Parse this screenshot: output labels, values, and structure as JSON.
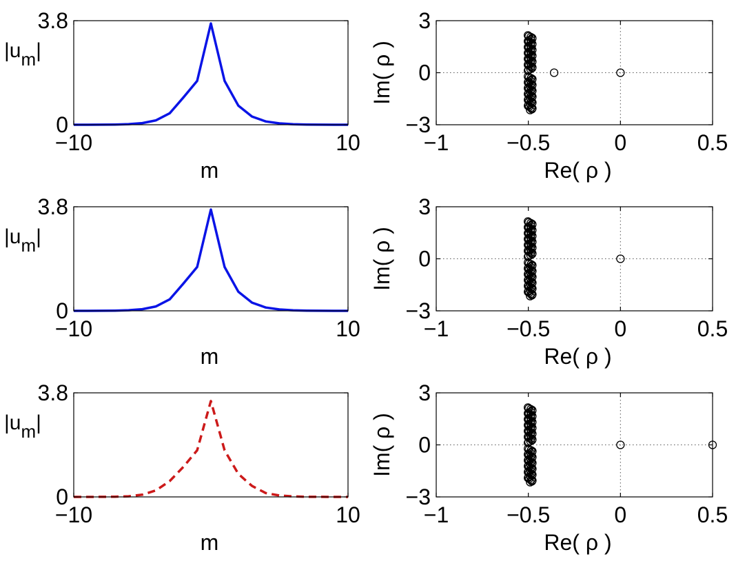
{
  "colors": {
    "blue": "#0a14e6",
    "red": "#cc1a1a",
    "black": "#000000"
  },
  "chart_data": [
    {
      "type": "line",
      "xlabel": "m",
      "ylabel_main": "|u",
      "ylabel_sub": "m",
      "ylabel_end": "|",
      "xlim": [
        -10,
        10
      ],
      "ylim": [
        0,
        3.8
      ],
      "xtick_labels": [
        "−10",
        "10"
      ],
      "ytick_labels": [
        "0",
        "3.8"
      ],
      "line_style": "solid",
      "color": "#0a14e6",
      "x": [
        -10,
        -9,
        -8,
        -7,
        -6,
        -5,
        -4,
        -3,
        -2,
        -1,
        0,
        1,
        2,
        3,
        4,
        5,
        6,
        7,
        8,
        9,
        10
      ],
      "y": [
        0.0005,
        0.001,
        0.003,
        0.008,
        0.022,
        0.06,
        0.16,
        0.42,
        1.0,
        1.6,
        3.7,
        1.6,
        0.7,
        0.3,
        0.12,
        0.05,
        0.02,
        0.008,
        0.003,
        0.001,
        0.0005
      ]
    },
    {
      "type": "scatter",
      "xlabel": "Re( ρ )",
      "ylabel": "Im( ρ )",
      "xlim": [
        -1,
        0.5
      ],
      "ylim": [
        -3,
        3
      ],
      "xtick_labels": [
        "−1",
        "−0.5",
        "0",
        "0.5"
      ],
      "ytick_labels": [
        "−3",
        "0",
        "3"
      ],
      "grid": "dotted at x=0 and y=0",
      "marker": "open circle",
      "cluster": {
        "re": -0.49,
        "im_min": -2.15,
        "im_max": 2.15,
        "gap_im": [
          -0.18,
          0.1
        ]
      },
      "isolated_points": [
        {
          "re": -0.36,
          "im": 0
        },
        {
          "re": 0,
          "im": 0
        }
      ]
    },
    {
      "type": "line",
      "xlabel": "m",
      "ylabel_main": "|u",
      "ylabel_sub": "m",
      "ylabel_end": "|",
      "xlim": [
        -10,
        10
      ],
      "ylim": [
        0,
        3.8
      ],
      "xtick_labels": [
        "−10",
        "10"
      ],
      "ytick_labels": [
        "0",
        "3.8"
      ],
      "line_style": "solid",
      "color": "#0a14e6",
      "x": [
        -10,
        -9,
        -8,
        -7,
        -6,
        -5,
        -4,
        -3,
        -2,
        -1,
        0,
        1,
        2,
        3,
        4,
        5,
        6,
        7,
        8,
        9,
        10
      ],
      "y": [
        0.0005,
        0.001,
        0.003,
        0.008,
        0.022,
        0.06,
        0.16,
        0.42,
        1.0,
        1.6,
        3.7,
        1.6,
        0.7,
        0.3,
        0.12,
        0.05,
        0.02,
        0.008,
        0.003,
        0.001,
        0.0005
      ]
    },
    {
      "type": "scatter",
      "xlabel": "Re( ρ )",
      "ylabel": "Im( ρ )",
      "xlim": [
        -1,
        0.5
      ],
      "ylim": [
        -3,
        3
      ],
      "xtick_labels": [
        "−1",
        "−0.5",
        "0",
        "0.5"
      ],
      "ytick_labels": [
        "−3",
        "0",
        "3"
      ],
      "grid": "dotted at x=0 and y=0",
      "marker": "open circle",
      "cluster": {
        "re": -0.49,
        "im_min": -2.15,
        "im_max": 2.15,
        "gap_im": [
          -0.18,
          0.1
        ]
      },
      "isolated_points": [
        {
          "re": 0,
          "im": 0
        }
      ]
    },
    {
      "type": "line",
      "xlabel": "m",
      "ylabel_main": "|u",
      "ylabel_sub": "m",
      "ylabel_end": "|",
      "xlim": [
        -10,
        10
      ],
      "ylim": [
        0,
        3.8
      ],
      "xtick_labels": [
        "−10",
        "10"
      ],
      "ytick_labels": [
        "0",
        "3.8"
      ],
      "line_style": "dashed",
      "color": "#cc1a1a",
      "x": [
        -10,
        -9,
        -8,
        -7,
        -6,
        -5,
        -4,
        -3,
        -2,
        -1,
        -0.5,
        0,
        0.5,
        1,
        2,
        3,
        4,
        5,
        6,
        7,
        8,
        9,
        10
      ],
      "y": [
        0.0005,
        0.001,
        0.003,
        0.008,
        0.022,
        0.08,
        0.24,
        0.58,
        1.1,
        1.7,
        2.6,
        3.5,
        2.6,
        1.7,
        0.84,
        0.4,
        0.14,
        0.05,
        0.018,
        0.006,
        0.002,
        0.0008,
        0.0005
      ]
    },
    {
      "type": "scatter",
      "xlabel": "Re( ρ )",
      "ylabel": "Im( ρ )",
      "xlim": [
        -1,
        0.5
      ],
      "ylim": [
        -3,
        3
      ],
      "xtick_labels": [
        "−1",
        "−0.5",
        "0",
        "0.5"
      ],
      "ytick_labels": [
        "−3",
        "0",
        "3"
      ],
      "grid": "dotted at x=0 and y=0",
      "marker": "open circle",
      "cluster": {
        "re": -0.49,
        "im_min": -2.15,
        "im_max": 2.15,
        "gap_im": [
          -0.18,
          0.1
        ]
      },
      "isolated_points": [
        {
          "re": 0,
          "im": 0
        },
        {
          "re": 0.5,
          "im": 0
        }
      ]
    }
  ]
}
